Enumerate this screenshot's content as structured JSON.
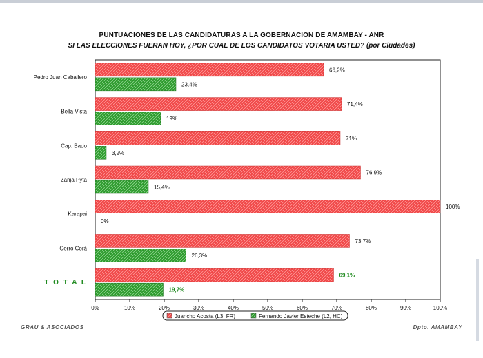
{
  "title": "PUNTUACIONES DE LAS CANDIDATURAS A LA GOBERNACION DE AMAMBAY  -  ANR",
  "subtitle": "SI LAS ELECCIONES FUERAN HOY, ¿POR CUAL DE LOS CANDIDATOS VOTARIA USTED? (por Ciudades)",
  "footer_left": "GRAU & ASOCIADOS",
  "footer_right": "Dpto. AMAMBAY",
  "colors": {
    "series1": "#f04848",
    "series2": "#2e9a2e",
    "total_label": "#1f8a1f"
  },
  "chart_data": {
    "type": "bar",
    "orientation": "horizontal",
    "categories": [
      "Pedro Juan Caballero",
      "Bella Vista",
      "Cap. Bado",
      "Zanja Pyta",
      "Karapai",
      "Cerro Corá",
      "T O T A L"
    ],
    "series": [
      {
        "name": "Juancho Acosta (L3, FR)",
        "values": [
          66.2,
          71.4,
          71.0,
          76.9,
          100,
          73.7,
          69.1
        ],
        "labels": [
          "66,2%",
          "71,4%",
          "71%",
          "76,9%",
          "100%",
          "73,7%",
          "69,1%"
        ]
      },
      {
        "name": "Fernando Javier Esteche (L2, HC)",
        "values": [
          23.4,
          19.0,
          3.2,
          15.4,
          0,
          26.3,
          19.7
        ],
        "labels": [
          "23,4%",
          "19%",
          "3,2%",
          "15,4%",
          "0%",
          "26,3%",
          "19,7%"
        ]
      }
    ],
    "xlim": [
      0,
      100
    ],
    "x_ticks": [
      "0%",
      "10%",
      "20%",
      "30%",
      "40%",
      "50%",
      "60%",
      "70%",
      "80%",
      "90%",
      "100%"
    ],
    "legend": "bottom",
    "grid": false
  }
}
